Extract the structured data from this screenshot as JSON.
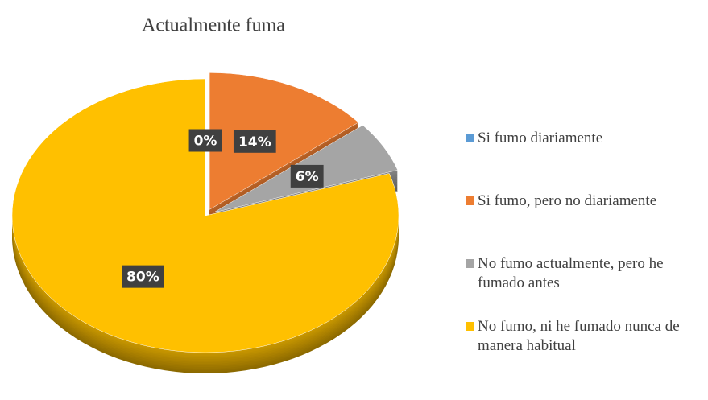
{
  "chart_data": {
    "type": "pie",
    "title": "Actualmente fuma",
    "categories": [
      "Si fumo diariamente",
      "Si fumo, pero no diariamente",
      "No fumo actualmente, pero he fumado antes",
      "No fumo, ni he fumado nunca de manera habitual"
    ],
    "values": [
      0,
      14,
      6,
      80
    ],
    "value_labels": [
      "0%",
      "14%",
      "6%",
      "80%"
    ],
    "colors": [
      "#5b9bd5",
      "#ed7d31",
      "#a5a5a5",
      "#ffc000"
    ],
    "legend": "right"
  }
}
